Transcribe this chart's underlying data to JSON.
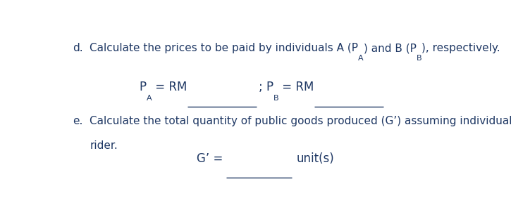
{
  "bg_color": "#ffffff",
  "text_color": "#1f3864",
  "fs": 11.0,
  "fs_formula": 12.0,
  "fs_sub": 8.0,
  "d_label": "d.",
  "d_text1": "Calculate the prices to be paid by individuals A (P",
  "d_sub1": "A",
  "d_text2": ") and B (P",
  "d_sub2": "B",
  "d_text3": "), respectively.",
  "pa_prefix": "P",
  "pa_sub": "A",
  "pa_eq": " = RM",
  "sep": "; ",
  "pb_prefix": "P",
  "pb_sub": "B",
  "pb_eq": " = RM",
  "e_label": "e.",
  "e_text1": "Calculate the total quantity of public goods produced (G’) assuming individual B is a free",
  "e_text2": "rider.",
  "g_prefix": "G’ = ",
  "g_unit": "unit(s)",
  "ul_color": "#1f3864",
  "ul_lw": 1.0
}
